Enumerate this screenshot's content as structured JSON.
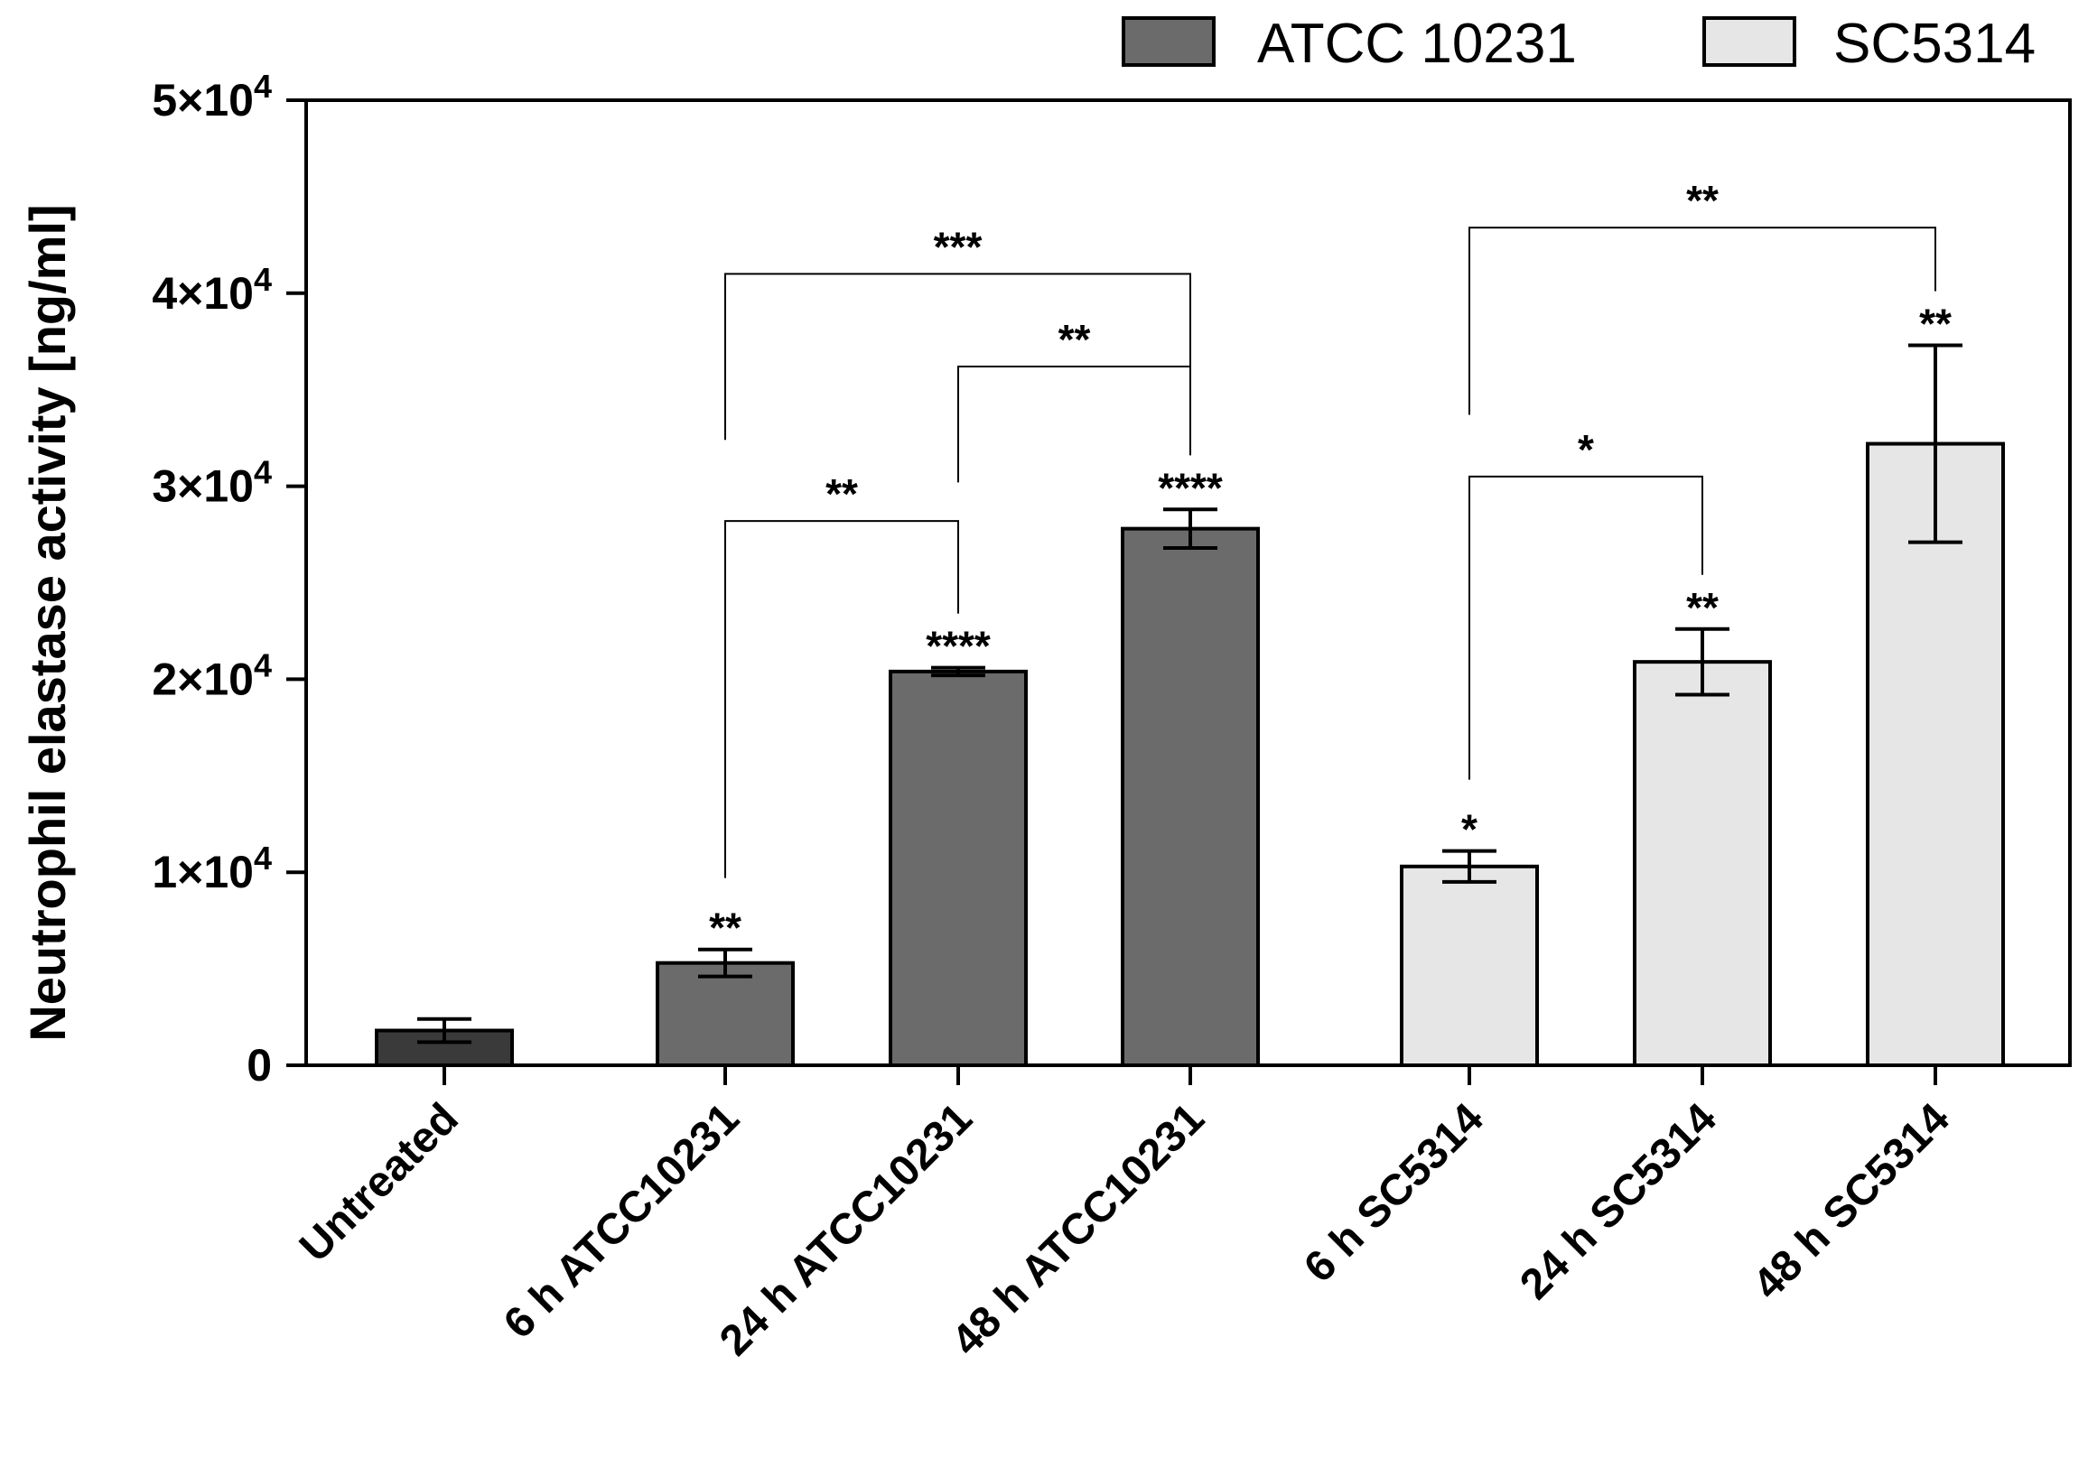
{
  "chart_data": {
    "type": "bar",
    "ylabel": "Neutrophil elastase activity [ng/ml]",
    "ylim": [
      0,
      50000
    ],
    "yticks": [
      {
        "value": 0,
        "base": "0",
        "exp": ""
      },
      {
        "value": 10000,
        "base": "1×10",
        "exp": "4"
      },
      {
        "value": 20000,
        "base": "2×10",
        "exp": "4"
      },
      {
        "value": 30000,
        "base": "3×10",
        "exp": "4"
      },
      {
        "value": 40000,
        "base": "4×10",
        "exp": "4"
      },
      {
        "value": 50000,
        "base": "5×10",
        "exp": "4"
      }
    ],
    "legend": [
      {
        "name": "ATCC 10231",
        "color": "#6b6b6b"
      },
      {
        "name": "SC5314",
        "color": "#e6e6e6"
      }
    ],
    "bars": [
      {
        "category": "Untreated",
        "value": 1800,
        "error": 600,
        "color": "#3a3a3a",
        "label": ""
      },
      {
        "category": "6 h ATCC10231",
        "value": 5300,
        "error": 700,
        "color": "#6b6b6b",
        "label": "**"
      },
      {
        "category": "24 h ATCC10231",
        "value": 20400,
        "error": 200,
        "color": "#6b6b6b",
        "label": "****"
      },
      {
        "category": "48 h ATCC10231",
        "value": 27800,
        "error": 1000,
        "color": "#6b6b6b",
        "label": "****"
      },
      {
        "category": "6 h SC5314",
        "value": 10300,
        "error": 800,
        "color": "#e6e6e6",
        "label": "*"
      },
      {
        "category": "24 h SC5314",
        "value": 20900,
        "error": 1700,
        "color": "#e6e6e6",
        "label": "**"
      },
      {
        "category": "48 h SC5314",
        "value": 32200,
        "error": 5100,
        "color": "#e6e6e6",
        "label": "**"
      }
    ],
    "comparisons": [
      {
        "from": 1,
        "to": 2,
        "label": "**",
        "y": 28200,
        "from_end": 9700
      },
      {
        "from": 2,
        "to": 3,
        "label": "**",
        "y": 36200,
        "from_end": 30200
      },
      {
        "from": 1,
        "to": 3,
        "label": "***",
        "y": 41000,
        "from_end": 32400
      },
      {
        "from": 4,
        "to": 5,
        "label": "*",
        "y": 30500,
        "from_end": 14800
      },
      {
        "from": 4,
        "to": 6,
        "label": "**",
        "y": 43400,
        "from_end": 33700
      }
    ]
  }
}
